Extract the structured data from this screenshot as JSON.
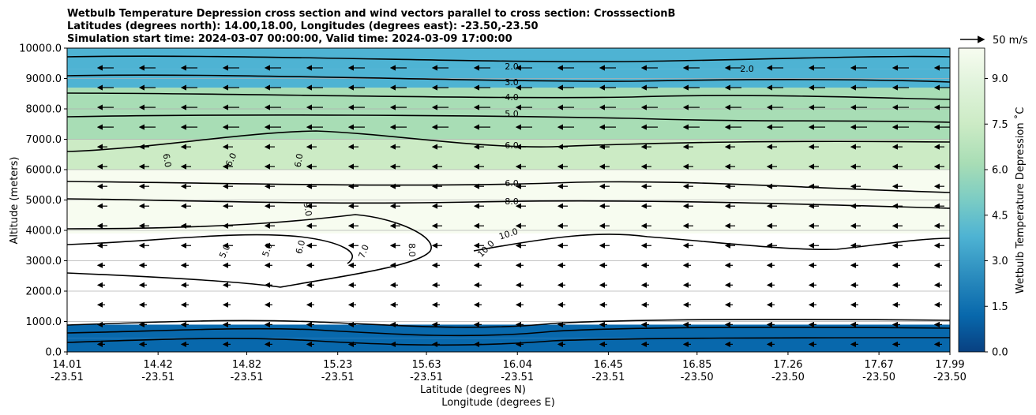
{
  "chart_data": {
    "type": "heatmap",
    "title_lines": [
      "Wetbulb Temperature Depression cross section and wind vectors parallel to cross section: CrosssectionB",
      "Latitudes (degrees north): 14.00,18.00, Longitudes (degrees east): -23.50,-23.50",
      "Simulation start time: 2024-03-07 00:00:00, Valid time: 2024-03-09 17:00:00"
    ],
    "ylabel": "Altitude (meters)",
    "xlabel_lat": "Latitude (degrees N)",
    "xlabel_lon": "Longitude (degrees E)",
    "ylim": [
      0,
      10000
    ],
    "y_ticks": [
      "0.0",
      "1000.0",
      "2000.0",
      "3000.0",
      "4000.0",
      "5000.0",
      "6000.0",
      "7000.0",
      "8000.0",
      "9000.0",
      "10000.0"
    ],
    "x_range": [
      14.01,
      17.99
    ],
    "x_ticks": [
      {
        "lat": "14.01",
        "lon": "-23.51"
      },
      {
        "lat": "14.42",
        "lon": "-23.51"
      },
      {
        "lat": "14.82",
        "lon": "-23.51"
      },
      {
        "lat": "15.23",
        "lon": "-23.51"
      },
      {
        "lat": "15.63",
        "lon": "-23.51"
      },
      {
        "lat": "16.04",
        "lon": "-23.51"
      },
      {
        "lat": "16.45",
        "lon": "-23.51"
      },
      {
        "lat": "16.85",
        "lon": "-23.50"
      },
      {
        "lat": "17.26",
        "lon": "-23.50"
      },
      {
        "lat": "17.67",
        "lon": "-23.50"
      },
      {
        "lat": "17.99",
        "lon": "-23.50"
      }
    ],
    "colorbar": {
      "label": "Wetbulb Temperature Depression ˚C",
      "ticks": [
        "0.0",
        "1.5",
        "3.0",
        "4.5",
        "6.0",
        "7.5",
        "9.0"
      ],
      "range": [
        0,
        10
      ]
    },
    "wind_key_label": "50 m/s",
    "contour_labels": [
      "2.0",
      "3.0",
      "4.0",
      "5.0",
      "6.0",
      "6.0",
      "8.0",
      "10.0",
      "2.0",
      "6.0",
      "6.0",
      "6.0",
      "9.0",
      "5.0",
      "5.0",
      "6.0",
      "7.0",
      "8.0",
      "10.0"
    ],
    "depression_profile": [
      {
        "alt": 250,
        "value": 1.5
      },
      {
        "alt": 600,
        "value": 0.8
      },
      {
        "alt": 1500,
        "value": 10
      },
      {
        "alt": 2500,
        "value": 10
      },
      {
        "alt": 3500,
        "value": 9
      },
      {
        "alt": 4500,
        "value": 9.3
      },
      {
        "alt": 5500,
        "value": 7.2
      },
      {
        "alt": 6500,
        "value": 6
      },
      {
        "alt": 7500,
        "value": 5
      },
      {
        "alt": 8300,
        "value": 3.8
      },
      {
        "alt": 9000,
        "value": 3
      },
      {
        "alt": 9600,
        "value": 1.8
      }
    ]
  },
  "colors": {
    "scale": [
      "#084081",
      "#0868ac",
      "#2b8cbe",
      "#4eb3d3",
      "#7bccc4",
      "#a8ddb5",
      "#ccebc5",
      "#e0f3db",
      "#f7fcf0",
      "#ffffff"
    ]
  }
}
